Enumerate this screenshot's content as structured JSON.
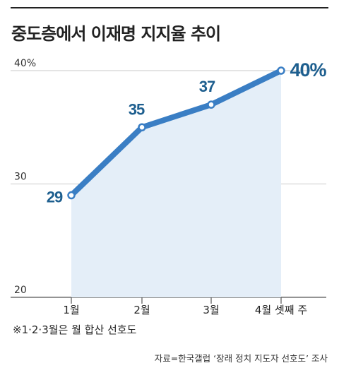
{
  "title": "중도층에서 이재명 지지율 추이",
  "footnote": "※1·2·3월은 월 합산 선호도",
  "source": "자료=한국갤럽 ‘장래 정치 지도자 선호도’ 조사",
  "colors": {
    "line": "#3a7ec4",
    "area": "#e4eef8",
    "label": "#1e5f8f",
    "grid": "#c9c9c9"
  },
  "chart_data": {
    "type": "line",
    "categories": [
      "1월",
      "2월",
      "3월",
      "4월 셋째 주"
    ],
    "values": [
      29,
      35,
      37,
      40
    ],
    "data_labels": [
      "29",
      "35",
      "37",
      "40%"
    ],
    "y_ticks": [
      {
        "value": 20,
        "label": "20"
      },
      {
        "value": 30,
        "label": "30"
      },
      {
        "value": 40,
        "label": "40%"
      }
    ],
    "ylim": [
      20,
      40
    ],
    "grid": true
  }
}
